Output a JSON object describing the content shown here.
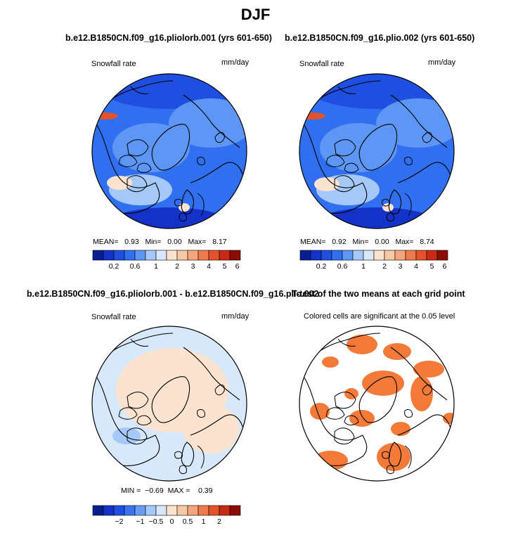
{
  "page": {
    "title": "DJF"
  },
  "panels": [
    {
      "title": "b.e12.B1850CN.f09_g16.pliolorb.001 (yrs 601-650)",
      "left_label": "Snowfall rate",
      "right_label": "mm/day",
      "stats": {
        "mean_label": "MEAN=",
        "mean": "0.93",
        "min_label": "Min=",
        "min": "0.00",
        "max_label": "Max=",
        "max": "8.17"
      }
    },
    {
      "title": "b.e12.B1850CN.f09_g16.plio.002 (yrs 601-650)",
      "left_label": "Snowfall rate",
      "right_label": "mm/day",
      "stats": {
        "mean_label": "MEAN=",
        "mean": "0.92",
        "min_label": "Min=",
        "min": "0.00",
        "max_label": "Max=",
        "max": "8.74"
      }
    },
    {
      "title": "b.e12.B1850CN.f09_g16.pliolorb.001 - b.e12.B1850CN.f09_g16.plio.002",
      "left_label": "Snowfall rate",
      "right_label": "mm/day",
      "stats": {
        "min_label": "MIN =",
        "min": "−0.69",
        "max_label": "MAX =",
        "max": "0.39"
      }
    },
    {
      "title": "T-test of the two means at each grid point",
      "subtitle": "Colored cells are significant at the 0.05 level"
    }
  ],
  "colorbars": {
    "snowfall": {
      "colors": [
        "#0a1f8f",
        "#1532c8",
        "#1f4fe0",
        "#2f6ff0",
        "#5d96f5",
        "#a5c8f8",
        "#d8e8fb",
        "#fbe3cf",
        "#f7c8a6",
        "#f4a57c",
        "#ef7a4d",
        "#e4522a",
        "#c92a15",
        "#8b0d05"
      ],
      "tick_labels": [
        "0.2",
        "0.6",
        "1",
        "2",
        "3",
        "4",
        "5",
        "6"
      ]
    },
    "difference": {
      "colors": [
        "#0a1f8f",
        "#1532c8",
        "#1f4fe0",
        "#3c73ee",
        "#6a9cf4",
        "#a5c8f8",
        "#d8e8fb",
        "#fbe3cf",
        "#f7c8a6",
        "#f4a57c",
        "#ef7a4d",
        "#e4522a",
        "#c92a15",
        "#8b0d05"
      ],
      "tick_labels": [
        "−2",
        "−1",
        "−0.5",
        "0",
        "0.5",
        "1",
        "2"
      ]
    }
  },
  "chart_data": [
    {
      "type": "heatmap",
      "title": "b.e12.B1850CN.f09_g16.pliolorb.001 (yrs 601-650)",
      "variable": "Snowfall rate",
      "units": "mm/day",
      "projection": "north polar stereographic",
      "mean": 0.93,
      "min": 0.0,
      "max": 8.17,
      "colorbar_levels": [
        0.1,
        0.2,
        0.4,
        0.6,
        0.8,
        1,
        1.5,
        2,
        2.5,
        3,
        4,
        5,
        6
      ]
    },
    {
      "type": "heatmap",
      "title": "b.e12.B1850CN.f09_g16.plio.002 (yrs 601-650)",
      "variable": "Snowfall rate",
      "units": "mm/day",
      "projection": "north polar stereographic",
      "mean": 0.92,
      "min": 0.0,
      "max": 8.74,
      "colorbar_levels": [
        0.1,
        0.2,
        0.4,
        0.6,
        0.8,
        1,
        1.5,
        2,
        2.5,
        3,
        4,
        5,
        6
      ]
    },
    {
      "type": "heatmap",
      "title": "b.e12.B1850CN.f09_g16.pliolorb.001 - b.e12.B1850CN.f09_g16.plio.002",
      "variable": "Snowfall rate",
      "units": "mm/day",
      "projection": "north polar stereographic",
      "min": -0.69,
      "max": 0.39,
      "colorbar_levels": [
        -3,
        -2,
        -1.5,
        -1,
        -0.5,
        -0.25,
        0,
        0.25,
        0.5,
        1,
        1.5,
        2,
        3
      ]
    },
    {
      "type": "heatmap",
      "title": "T-test of the two means at each grid point",
      "subtitle": "Colored cells are significant at the 0.05 level",
      "projection": "north polar stereographic",
      "significance_level": 0.05
    }
  ]
}
